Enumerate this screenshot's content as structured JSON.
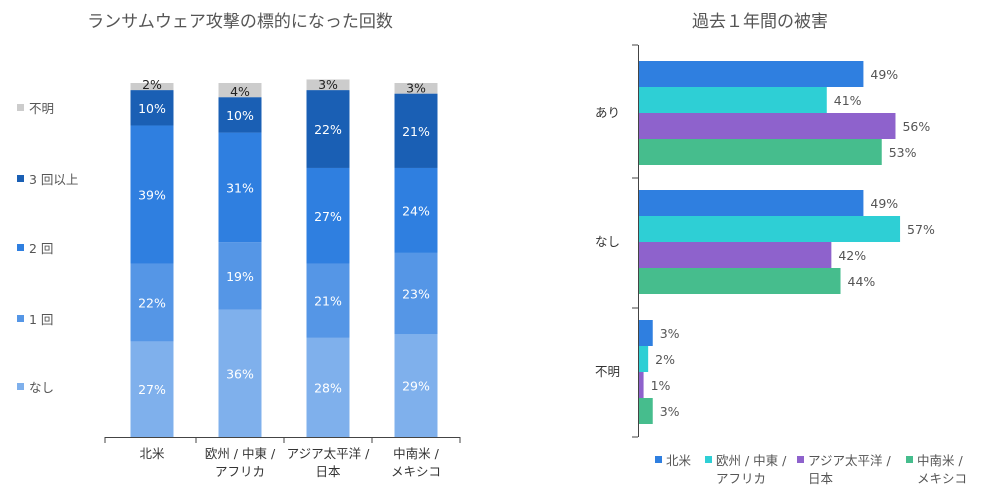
{
  "chart_data": [
    {
      "type": "bar",
      "stacked": true,
      "title": "ランサムウェア攻撃の標的になった回数",
      "categories": [
        [
          "北米"
        ],
        [
          "欧州 / 中東 /",
          "アフリカ"
        ],
        [
          "アジア太平洋 /",
          "日本"
        ],
        [
          "中南米 /",
          "メキシコ"
        ]
      ],
      "series": [
        {
          "name": "なし",
          "color": "#7fb0ec",
          "values": [
            27,
            36,
            28,
            29
          ]
        },
        {
          "name": "1 回",
          "color": "#5596e6",
          "values": [
            22,
            19,
            21,
            23
          ]
        },
        {
          "name": "2 回",
          "color": "#2f7fe0",
          "values": [
            39,
            31,
            27,
            24
          ]
        },
        {
          "name": "3 回以上",
          "color": "#1a5fb4",
          "values": [
            10,
            10,
            22,
            21
          ]
        },
        {
          "name": "不明",
          "color": "#cccccc",
          "values": [
            2,
            4,
            3,
            3
          ]
        }
      ],
      "unit": "%",
      "legend": "left"
    },
    {
      "type": "bar",
      "orientation": "horizontal",
      "title": "過去１年間の被害",
      "categories": [
        "あり",
        "なし",
        "不明"
      ],
      "series": [
        {
          "name": "北米",
          "color": "#2f7fe0",
          "values": [
            49,
            49,
            3
          ]
        },
        {
          "name": "欧州 / 中東 / アフリカ",
          "label_lines": [
            "欧州 / 中東 /",
            "アフリカ"
          ],
          "color": "#2ecfd5",
          "values": [
            41,
            57,
            2
          ]
        },
        {
          "name": "アジア太平洋 / 日本",
          "label_lines": [
            "アジア太平洋 /",
            "日本"
          ],
          "color": "#8e62cc",
          "values": [
            56,
            42,
            1
          ]
        },
        {
          "name": "中南米 / メキシコ",
          "label_lines": [
            "中南米 /",
            "メキシコ"
          ],
          "color": "#46bd8d",
          "values": [
            53,
            44,
            3
          ]
        }
      ],
      "unit": "%",
      "legend": "bottom"
    }
  ]
}
